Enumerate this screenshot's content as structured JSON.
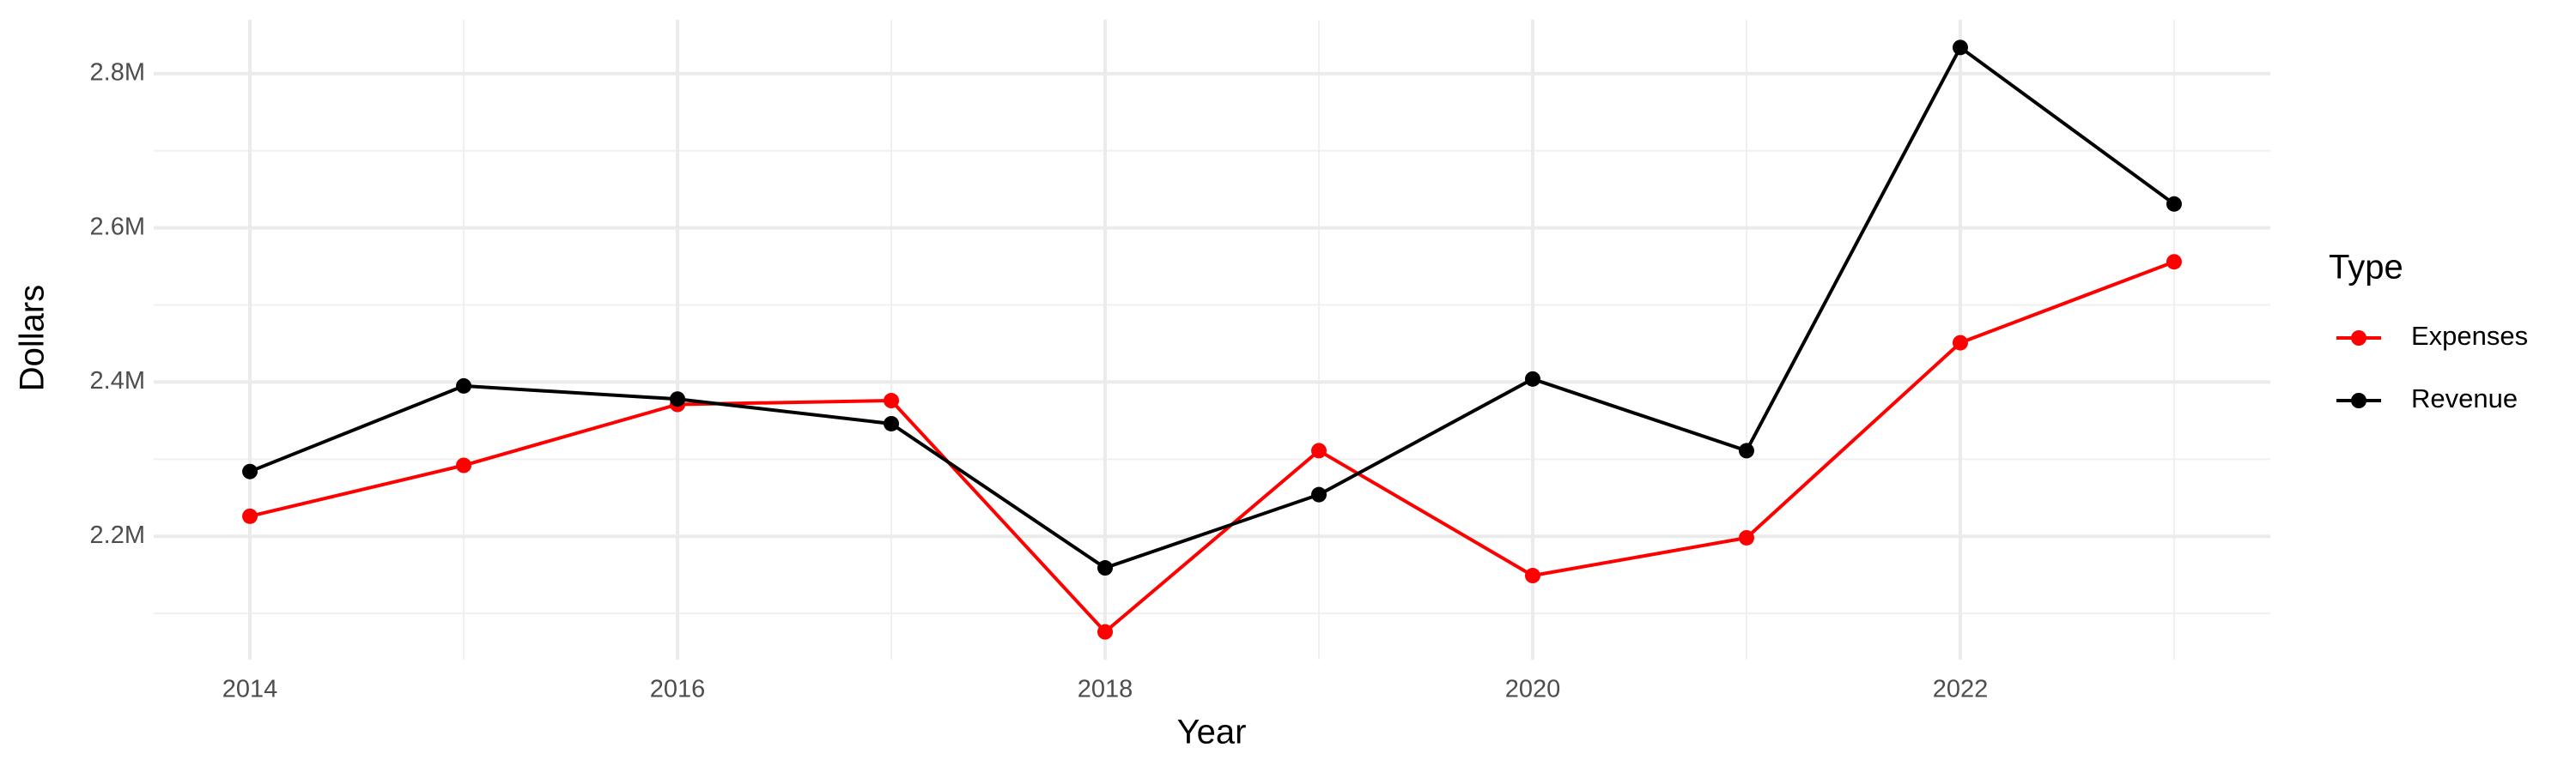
{
  "chart_data": {
    "type": "line",
    "x": [
      2014,
      2015,
      2016,
      2017,
      2018,
      2019,
      2020,
      2021,
      2022,
      2023
    ],
    "series": [
      {
        "name": "Expenses",
        "color": "#ff0000",
        "values": [
          2226000,
          2292000,
          2371000,
          2376000,
          2076000,
          2311000,
          2149000,
          2198000,
          2451000,
          2556000
        ]
      },
      {
        "name": "Revenue",
        "color": "#000000",
        "values": [
          2284000,
          2395000,
          2378000,
          2346000,
          2159000,
          2254000,
          2404000,
          2311000,
          2834000,
          2631000
        ]
      }
    ],
    "x_label": "Year",
    "y_label": "Dollars",
    "legend_title": "Type",
    "legend_position": "right",
    "xlim": [
      2013.55,
      2023.45
    ],
    "xticks": [
      2014,
      2016,
      2018,
      2020,
      2022
    ],
    "ylim": [
      2040000,
      2870000
    ],
    "yticks": [
      {
        "value": 2200000,
        "label": "2.2M"
      },
      {
        "value": 2400000,
        "label": "2.4M"
      },
      {
        "value": 2600000,
        "label": "2.6M"
      },
      {
        "value": 2800000,
        "label": "2.8M"
      }
    ],
    "grid": true
  }
}
